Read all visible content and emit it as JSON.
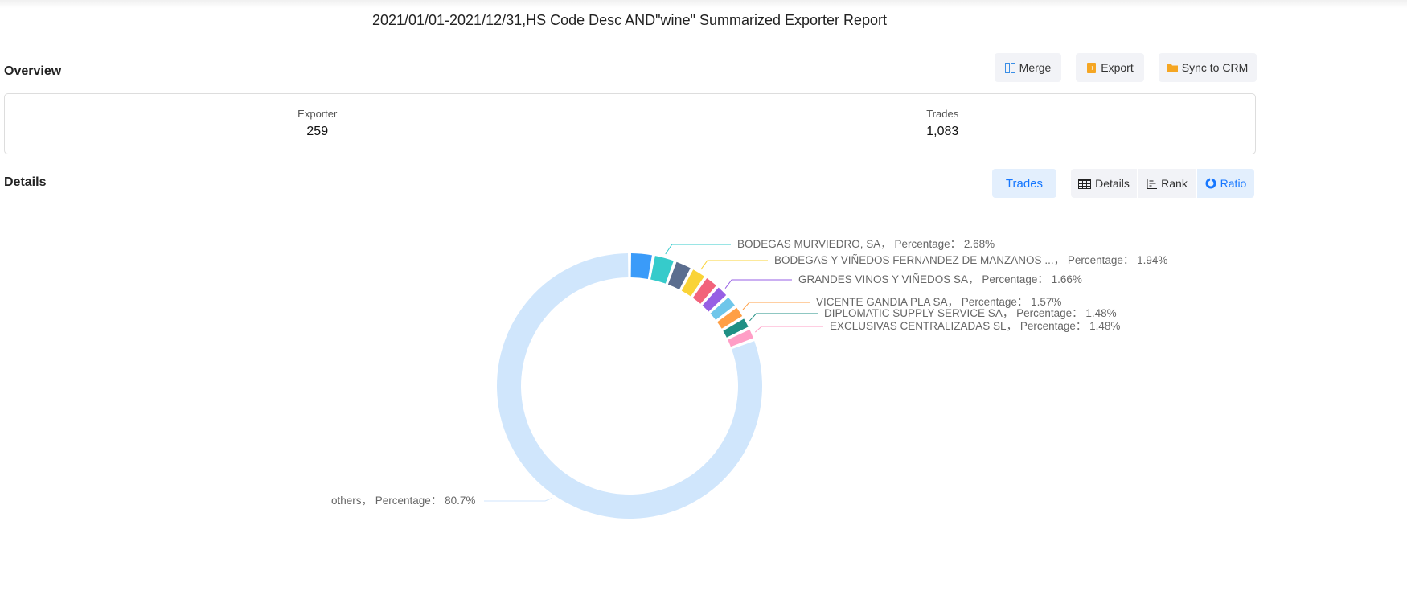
{
  "title": "2021/01/01-2021/12/31,HS Code Desc AND\"wine\" Summarized Exporter Report",
  "overview": {
    "heading": "Overview",
    "exporter_label": "Exporter",
    "exporter_value": "259",
    "trades_label": "Trades",
    "trades_value": "1,083"
  },
  "toolbar": {
    "merge": "Merge",
    "export": "Export",
    "sync": "Sync to CRM"
  },
  "details": {
    "heading": "Details",
    "trades_tab": "Trades",
    "views": [
      "Details",
      "Rank",
      "Ratio"
    ],
    "active_view": "Ratio"
  },
  "colors": {
    "accent": "#1677ff",
    "others": "#d0e6fc"
  },
  "chart_data": {
    "type": "pie",
    "variant": "donut",
    "legend": "none",
    "label_format": "{name}， Percentage： {value}%",
    "slices": [
      {
        "name": "",
        "value": null,
        "color": "#3a9bf9"
      },
      {
        "name": "BODEGAS MURVIEDRO, SA",
        "value": 2.68,
        "color": "#36cbcb",
        "text": "BODEGAS MURVIEDRO, SA， Percentage： 2.68%"
      },
      {
        "name": "",
        "value": null,
        "color": "#5b6e8f"
      },
      {
        "name": "BODEGAS Y VIÑEDOS FERNANDEZ DE MANZANOS ...",
        "value": 1.94,
        "color": "#fad337",
        "text": "BODEGAS Y VIÑEDOS FERNANDEZ DE MANZANOS ...， Percentage： 1.94%"
      },
      {
        "name": "",
        "value": null,
        "color": "#f2637b"
      },
      {
        "name": "GRANDES VINOS Y VIÑEDOS SA",
        "value": 1.66,
        "color": "#975fe4",
        "text": "GRANDES VINOS Y VIÑEDOS SA， Percentage： 1.66%"
      },
      {
        "name": "",
        "value": null,
        "color": "#6ec6ea"
      },
      {
        "name": "VICENTE GANDIA PLA SA",
        "value": 1.57,
        "color": "#ff9f45",
        "text": "VICENTE GANDIA PLA SA， Percentage： 1.57%"
      },
      {
        "name": "DIPLOMATIC SUPPLY SERVICE SA",
        "value": 1.48,
        "color": "#1f8f84",
        "text": "DIPLOMATIC SUPPLY SERVICE SA， Percentage： 1.48%"
      },
      {
        "name": "EXCLUSIVAS CENTRALIZADAS SL",
        "value": 1.48,
        "color": "#ff9ec6",
        "text": "EXCLUSIVAS CENTRALIZADAS SL， Percentage： 1.48%"
      },
      {
        "name": "others",
        "value": 80.7,
        "color": "#d0e6fc",
        "text": "others， Percentage： 80.7%"
      }
    ]
  }
}
